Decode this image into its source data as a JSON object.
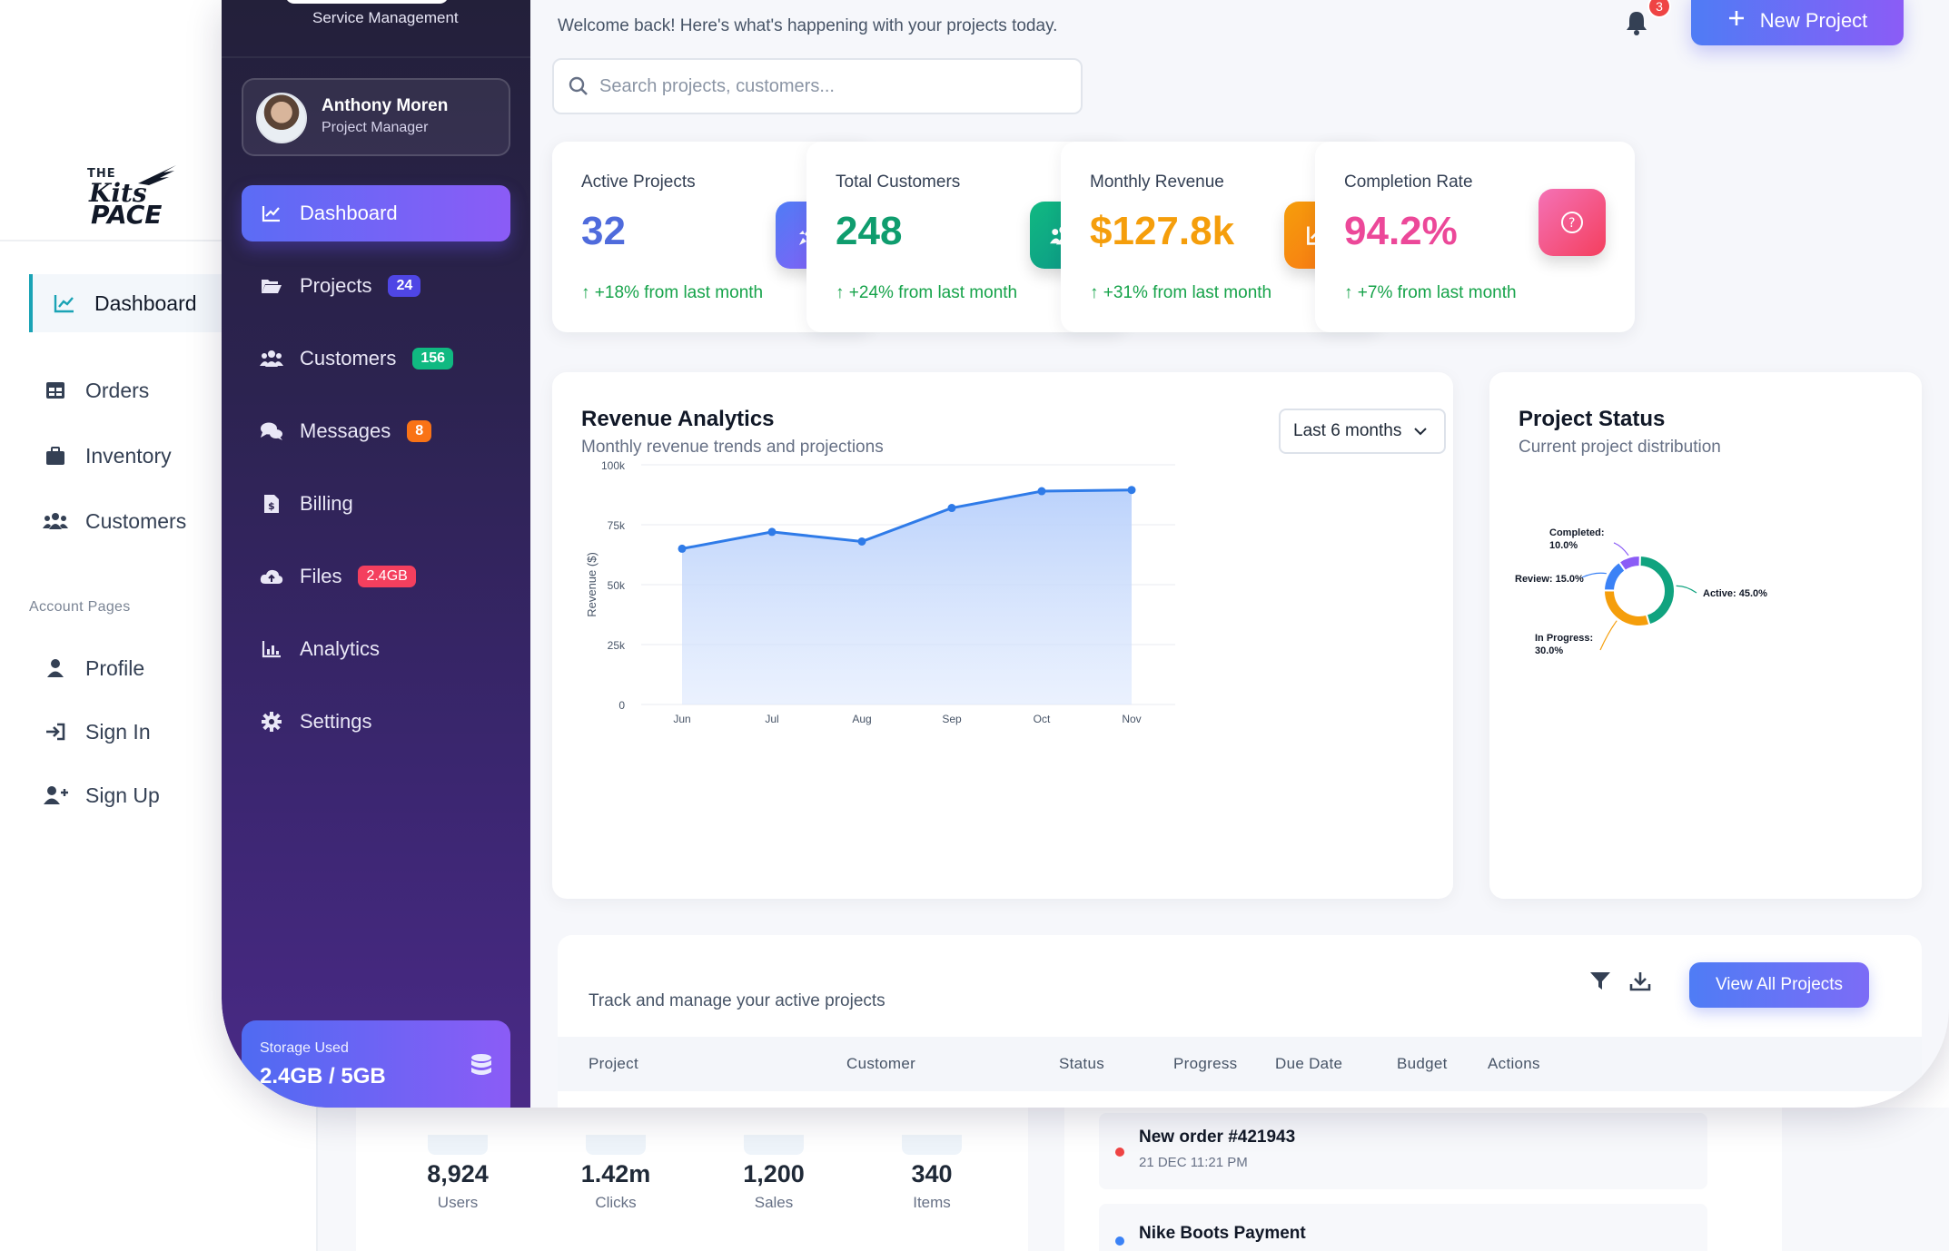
{
  "back": {
    "logo": {
      "line1": "THE",
      "line2": "Kits",
      "line3": "PACE"
    },
    "nav": [
      {
        "label": "Dashboard",
        "icon": "chart-line-icon",
        "active": true
      },
      {
        "label": "Orders",
        "icon": "table-icon"
      },
      {
        "label": "Inventory",
        "icon": "briefcase-icon"
      },
      {
        "label": "Customers",
        "icon": "users-icon"
      }
    ],
    "section_label": "Account Pages",
    "account_nav": [
      {
        "label": "Profile",
        "icon": "user-icon"
      },
      {
        "label": "Sign In",
        "icon": "sign-in-icon"
      },
      {
        "label": "Sign Up",
        "icon": "user-plus-icon"
      }
    ],
    "stats": [
      {
        "value": "8,924",
        "label": "Users"
      },
      {
        "value": "1.42m",
        "label": "Clicks"
      },
      {
        "value": "1,200",
        "label": "Sales"
      },
      {
        "value": "340",
        "label": "Items"
      }
    ],
    "orders": [
      {
        "title": "New order #421943",
        "date": "21 DEC 11:21 PM",
        "dot_color": "#ef4444"
      },
      {
        "title": "Nike Boots Payment",
        "date": "",
        "dot_color": "#3b82f6"
      }
    ]
  },
  "sidebar": {
    "subtitle": "Service Management",
    "user": {
      "name": "Anthony Moren",
      "role": "Project Manager"
    },
    "items": [
      {
        "label": "Dashboard",
        "icon": "chart-line-icon",
        "active": true
      },
      {
        "label": "Projects",
        "icon": "folder-open-icon",
        "badge": "24",
        "badge_color": "#4f46e5"
      },
      {
        "label": "Customers",
        "icon": "users-icon",
        "badge": "156",
        "badge_color": "#10b981"
      },
      {
        "label": "Messages",
        "icon": "comments-icon",
        "badge": "8",
        "badge_color": "#f97316"
      },
      {
        "label": "Billing",
        "icon": "invoice-icon"
      },
      {
        "label": "Files",
        "icon": "cloud-upload-icon",
        "badge": "2.4GB",
        "badge_color": "#f43f5e"
      },
      {
        "label": "Analytics",
        "icon": "chart-bar-icon"
      },
      {
        "label": "Settings",
        "icon": "gear-icon"
      }
    ],
    "storage": {
      "label": "Storage Used",
      "value": "2.4GB / 5GB"
    }
  },
  "header": {
    "welcome": "Welcome back! Here's what's happening with your projects today.",
    "notifications": "3",
    "new_project": "New Project",
    "search_placeholder": "Search projects, customers..."
  },
  "kpis": [
    {
      "title": "Active Projects",
      "value": "32",
      "change": "+18% from last month",
      "color": "#4f6bdc",
      "icon": "rocket-icon",
      "icon_bg": "linear-gradient(135deg,#4f7cf5,#8b5cf6)"
    },
    {
      "title": "Total Customers",
      "value": "248",
      "change": "+24% from last month",
      "color": "#0f9d6e",
      "icon": "users-icon",
      "icon_bg": "linear-gradient(135deg,#10b981,#0d9488)"
    },
    {
      "title": "Monthly Revenue",
      "value": "$127.8k",
      "change": "+31% from last month",
      "color": "#f59e0b",
      "icon": "chart-line-icon",
      "icon_bg": "linear-gradient(135deg,#f59e0b,#f97316)"
    },
    {
      "title": "Completion Rate",
      "value": "94.2%",
      "change": "+7% from last month",
      "color": "#ec4899",
      "icon": "question-circle-icon",
      "icon_bg": "linear-gradient(135deg,#f472b6,#f43f5e)"
    }
  ],
  "revenue": {
    "title": "Revenue Analytics",
    "subtitle": "Monthly revenue trends and projections",
    "range": "Last 6 months"
  },
  "status": {
    "title": "Project Status",
    "subtitle": "Current project distribution"
  },
  "table": {
    "subtitle": "Track and manage your active projects",
    "view_all": "View All Projects",
    "columns": [
      "Project",
      "Customer",
      "Status",
      "Progress",
      "Due Date",
      "Budget",
      "Actions"
    ]
  },
  "chart_data": [
    {
      "type": "area",
      "categories": [
        "Jun",
        "Jul",
        "Aug",
        "Sep",
        "Oct",
        "Nov"
      ],
      "values": [
        65000,
        72000,
        68000,
        82000,
        89000,
        89500
      ],
      "ylabel": "Revenue ($)",
      "yticks": [
        "0",
        "25k",
        "50k",
        "75k",
        "100k"
      ],
      "ylim": [
        0,
        100000
      ],
      "color": "#2f7be8",
      "grid": true
    },
    {
      "type": "pie",
      "labels": [
        "Active",
        "In Progress",
        "Review",
        "Completed"
      ],
      "values": [
        45.0,
        30.0,
        15.0,
        10.0
      ],
      "label_texts": [
        "Active: 45.0%",
        "In Progress: 30.0%",
        "Review: 15.0%",
        "Completed: 10.0%"
      ],
      "colors": [
        "#10a37f",
        "#f59e0b",
        "#3b82f6",
        "#8b5cf6"
      ]
    }
  ]
}
